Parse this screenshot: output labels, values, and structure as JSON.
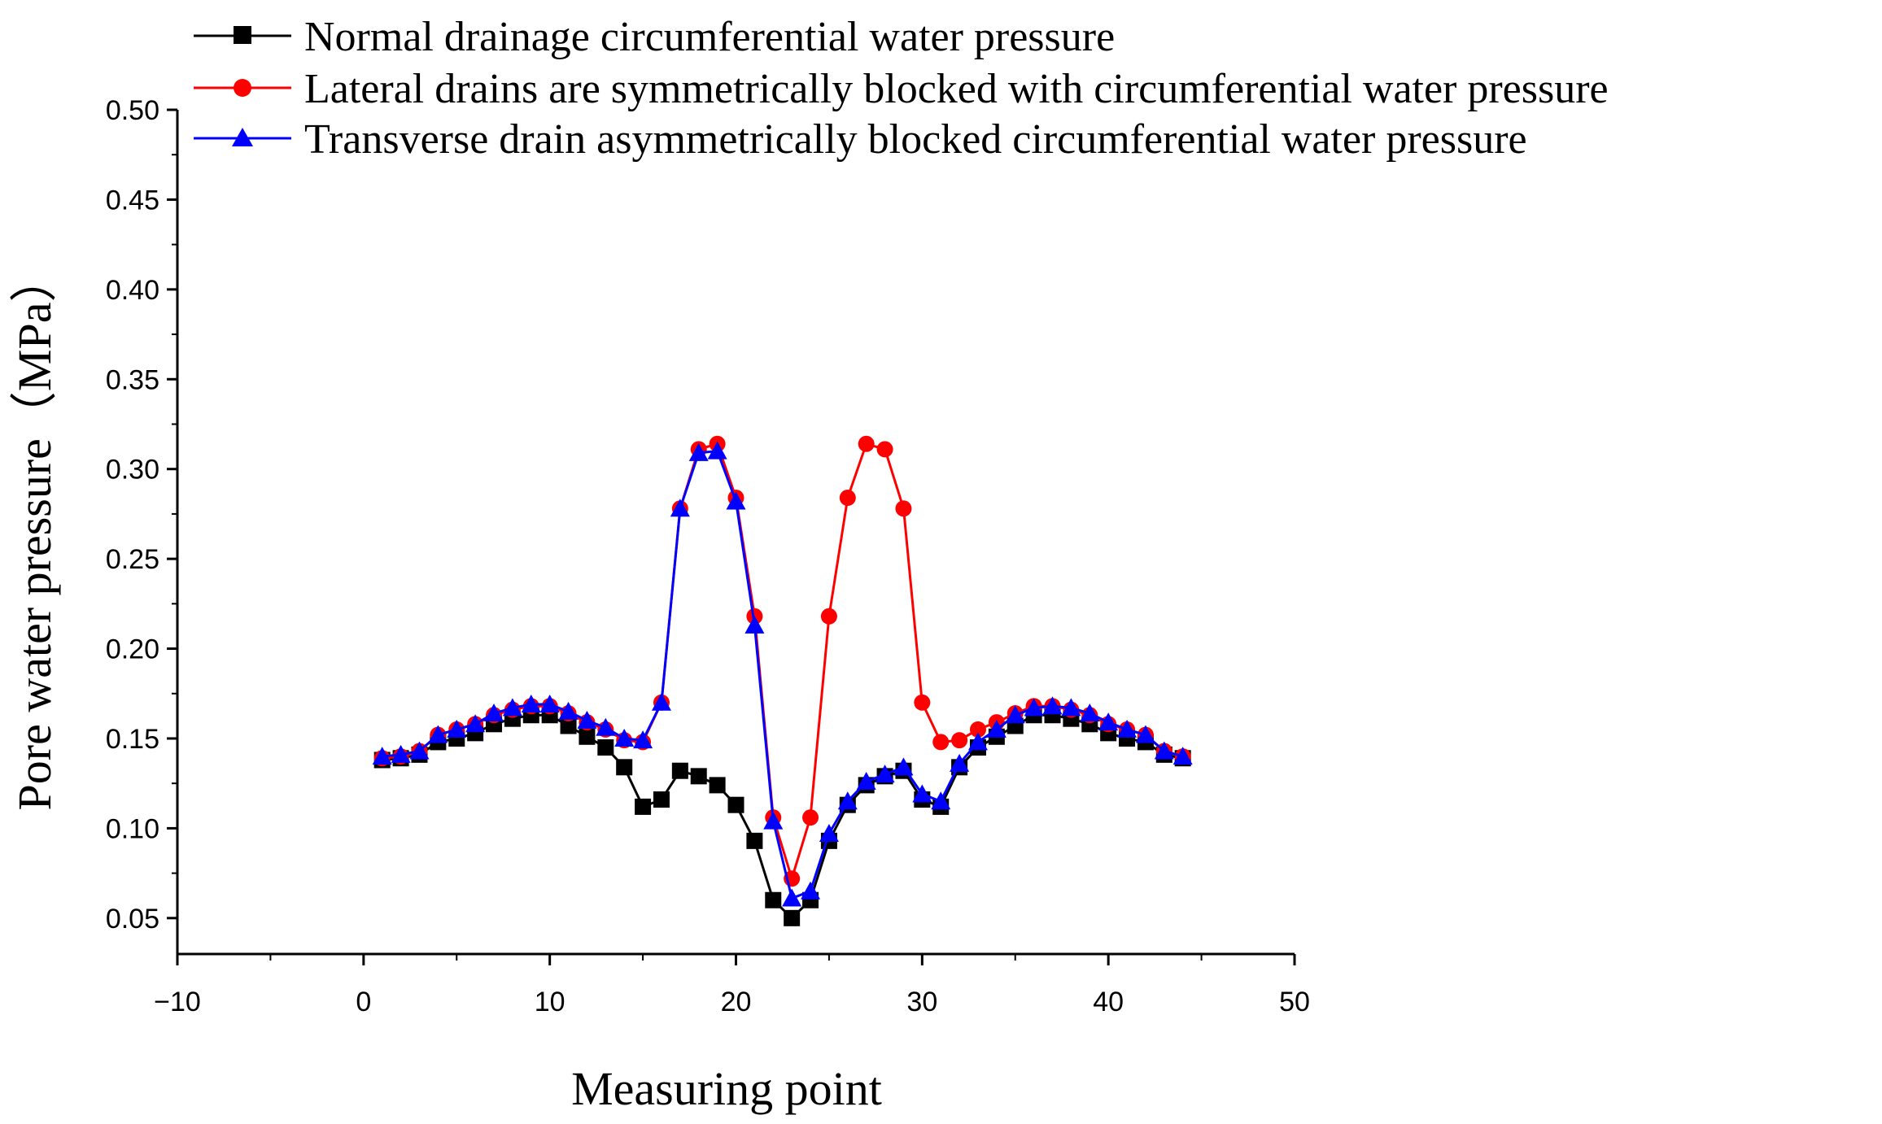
{
  "chart_data": {
    "type": "line",
    "title": "",
    "xlabel": "Measuring point",
    "ylabel": "Pore water pressure（MPa）",
    "xlim": [
      -10,
      50
    ],
    "ylim": [
      0.03,
      0.5
    ],
    "x_ticks": [
      -10,
      0,
      10,
      20,
      30,
      40,
      50
    ],
    "x_tick_labels": [
      "−10",
      "0",
      "10",
      "20",
      "30",
      "40",
      "50"
    ],
    "y_ticks": [
      0.05,
      0.1,
      0.15,
      0.2,
      0.25,
      0.3,
      0.35,
      0.4,
      0.45,
      0.5
    ],
    "y_tick_labels": [
      "0.05",
      "0.10",
      "0.15",
      "0.20",
      "0.25",
      "0.30",
      "0.35",
      "0.40",
      "0.45",
      "0.50"
    ],
    "grid": false,
    "legend_position": "top",
    "x": [
      1,
      2,
      3,
      4,
      5,
      6,
      7,
      8,
      9,
      10,
      11,
      12,
      13,
      14,
      15,
      16,
      17,
      18,
      19,
      20,
      21,
      22,
      23,
      24,
      25,
      26,
      27,
      28,
      29,
      30,
      31,
      32,
      33,
      34,
      35,
      36,
      37,
      38,
      39,
      40,
      41,
      42,
      43,
      44
    ],
    "series": [
      {
        "name": "Normal drainage circumferential water pressure",
        "color": "#000000",
        "marker": "square",
        "values": [
          0.138,
          0.139,
          0.141,
          0.148,
          0.15,
          0.153,
          0.158,
          0.161,
          0.163,
          0.163,
          0.157,
          0.151,
          0.145,
          0.134,
          0.112,
          0.116,
          0.132,
          0.129,
          0.124,
          0.113,
          0.093,
          0.06,
          0.05,
          0.06,
          0.093,
          0.113,
          0.124,
          0.129,
          0.132,
          0.116,
          0.112,
          0.134,
          0.145,
          0.151,
          0.157,
          0.163,
          0.163,
          0.161,
          0.158,
          0.153,
          0.15,
          0.148,
          0.141,
          0.139
        ]
      },
      {
        "name": "Lateral drains are symmetrically blocked with circumferential water pressure",
        "color": "#ff0000",
        "marker": "circle",
        "values": [
          0.139,
          0.14,
          0.143,
          0.152,
          0.155,
          0.158,
          0.163,
          0.166,
          0.168,
          0.168,
          0.164,
          0.159,
          0.155,
          0.149,
          0.148,
          0.17,
          0.278,
          0.311,
          0.314,
          0.284,
          0.218,
          0.106,
          0.072,
          0.106,
          0.218,
          0.284,
          0.314,
          0.311,
          0.278,
          0.17,
          0.148,
          0.149,
          0.155,
          0.159,
          0.164,
          0.168,
          0.168,
          0.166,
          0.163,
          0.158,
          0.155,
          0.152,
          0.143,
          0.14
        ]
      },
      {
        "name": "Transverse drain asymmetrically blocked circumferential water pressure",
        "color": "#0000ff",
        "marker": "triangle",
        "values": [
          0.14,
          0.141,
          0.143,
          0.152,
          0.155,
          0.158,
          0.164,
          0.167,
          0.169,
          0.169,
          0.165,
          0.16,
          0.156,
          0.15,
          0.149,
          0.17,
          0.278,
          0.309,
          0.31,
          0.282,
          0.213,
          0.104,
          0.061,
          0.065,
          0.097,
          0.115,
          0.126,
          0.13,
          0.134,
          0.119,
          0.115,
          0.136,
          0.148,
          0.155,
          0.163,
          0.167,
          0.168,
          0.167,
          0.164,
          0.159,
          0.155,
          0.152,
          0.143,
          0.14
        ]
      }
    ]
  }
}
